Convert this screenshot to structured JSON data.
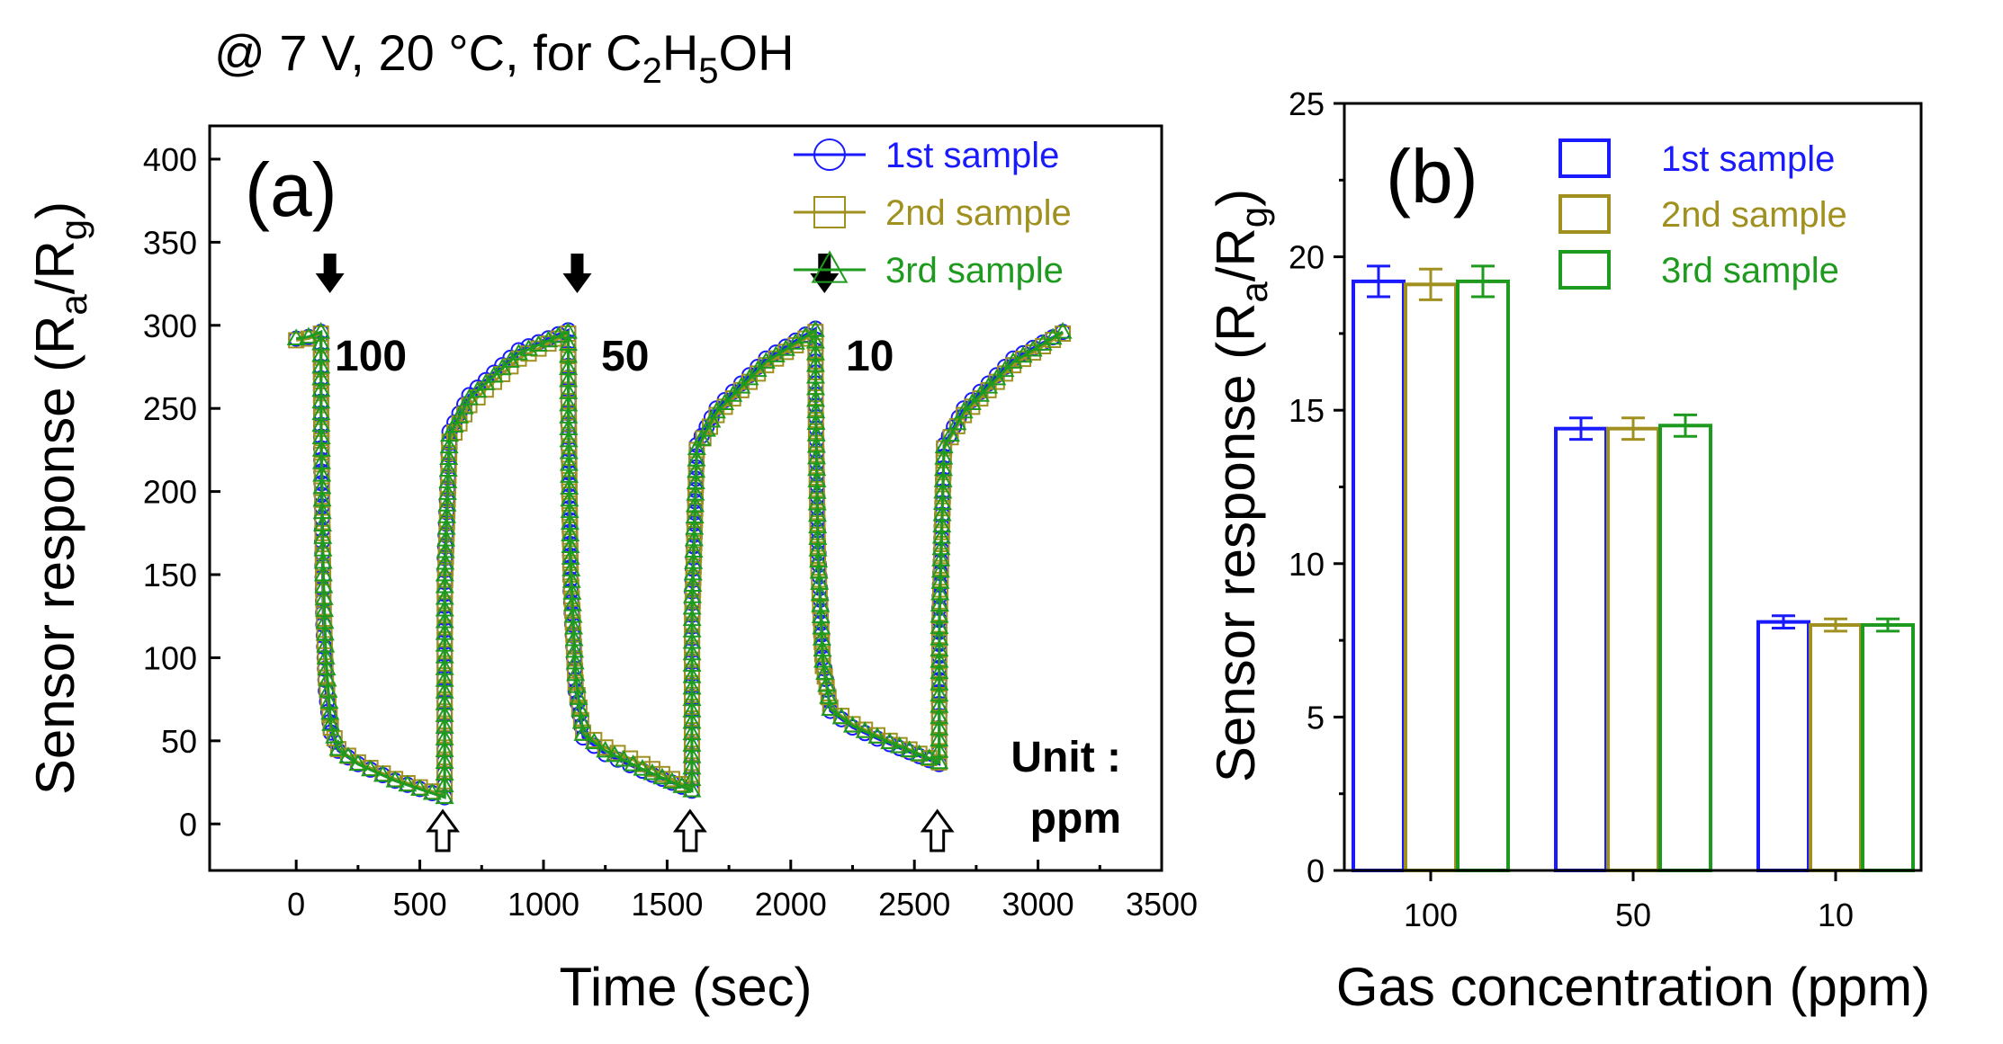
{
  "figure": {
    "title": {
      "prefix": "@ 7 V, 20 °C, for C",
      "sub1": "2",
      "mid": "H",
      "sub2": "5",
      "suffix": "OH"
    }
  },
  "colors": {
    "s1": "#1a1aff",
    "s2": "#a09020",
    "s3": "#1e9a1e"
  },
  "chart_data": [
    {
      "type": "line",
      "panel": "(a)",
      "xlabel": "Time (sec)",
      "ylabel": {
        "pre": "Sensor response (R",
        "sub1": "a",
        "mid": "/R",
        "sub2": "g",
        "post": ")"
      },
      "xlim": [
        -350,
        3500
      ],
      "ylim": [
        -28,
        420
      ],
      "xticks": [
        0,
        500,
        1000,
        1500,
        2000,
        2500,
        3000,
        3500
      ],
      "yticks": [
        0,
        50,
        100,
        150,
        200,
        250,
        300,
        350,
        400
      ],
      "legend": [
        "1st sample",
        "2nd sample",
        "3rd sample"
      ],
      "annotations": {
        "conc": [
          "100",
          "50",
          "10"
        ],
        "unit_line1": "Unit :",
        "unit_line2": "ppm"
      },
      "gas_on_times": [
        100,
        1100,
        2100
      ],
      "gas_off_times": [
        600,
        1600,
        2600
      ],
      "series": [
        {
          "name": "1st sample",
          "points": [
            [
              0,
              292
            ],
            [
              50,
              293
            ],
            [
              100,
              296
            ],
            [
              101,
              226
            ],
            [
              105,
              170
            ],
            [
              110,
              120
            ],
            [
              120,
              80
            ],
            [
              140,
              55
            ],
            [
              170,
              44
            ],
            [
              250,
              36
            ],
            [
              400,
              26
            ],
            [
              600,
              16
            ],
            [
              601,
              160
            ],
            [
              620,
              236
            ],
            [
              700,
              258
            ],
            [
              900,
              285
            ],
            [
              1100,
              297
            ],
            [
              1101,
              240
            ],
            [
              1105,
              190
            ],
            [
              1110,
              140
            ],
            [
              1130,
              80
            ],
            [
              1160,
              52
            ],
            [
              1250,
              42
            ],
            [
              1400,
              32
            ],
            [
              1600,
              20
            ],
            [
              1601,
              140
            ],
            [
              1620,
              228
            ],
            [
              1700,
              250
            ],
            [
              1900,
              280
            ],
            [
              2100,
              298
            ],
            [
              2101,
              265
            ],
            [
              2110,
              170
            ],
            [
              2130,
              100
            ],
            [
              2160,
              68
            ],
            [
              2250,
              58
            ],
            [
              2400,
              48
            ],
            [
              2600,
              36
            ],
            [
              2601,
              130
            ],
            [
              2620,
              228
            ],
            [
              2700,
              250
            ],
            [
              2900,
              280
            ],
            [
              3100,
              296
            ]
          ]
        },
        {
          "name": "2nd sample",
          "points": [
            [
              0,
              291
            ],
            [
              50,
              292
            ],
            [
              100,
              295
            ],
            [
              101,
              252
            ],
            [
              105,
              195
            ],
            [
              110,
              135
            ],
            [
              120,
              88
            ],
            [
              140,
              58
            ],
            [
              170,
              45
            ],
            [
              250,
              37
            ],
            [
              400,
              27
            ],
            [
              600,
              17
            ],
            [
              601,
              140
            ],
            [
              620,
              230
            ],
            [
              700,
              252
            ],
            [
              900,
              280
            ],
            [
              1100,
              295
            ],
            [
              1101,
              268
            ],
            [
              1105,
              200
            ],
            [
              1110,
              150
            ],
            [
              1130,
              85
            ],
            [
              1160,
              55
            ],
            [
              1250,
              46
            ],
            [
              1400,
              36
            ],
            [
              1600,
              21
            ],
            [
              1601,
              120
            ],
            [
              1620,
              225
            ],
            [
              1700,
              246
            ],
            [
              1900,
              276
            ],
            [
              2100,
              296
            ],
            [
              2101,
              250
            ],
            [
              2110,
              160
            ],
            [
              2130,
              95
            ],
            [
              2160,
              70
            ],
            [
              2250,
              60
            ],
            [
              2400,
              50
            ],
            [
              2600,
              37
            ],
            [
              2601,
              118
            ],
            [
              2620,
              226
            ],
            [
              2700,
              246
            ],
            [
              2900,
              276
            ],
            [
              3100,
              295
            ]
          ]
        },
        {
          "name": "3rd sample",
          "points": [
            [
              0,
              292
            ],
            [
              50,
              293
            ],
            [
              100,
              296
            ],
            [
              101,
              240
            ],
            [
              105,
              195
            ],
            [
              110,
              150
            ],
            [
              120,
              100
            ],
            [
              140,
              60
            ],
            [
              170,
              45
            ],
            [
              250,
              36
            ],
            [
              400,
              26
            ],
            [
              600,
              16
            ],
            [
              601,
              150
            ],
            [
              620,
              234
            ],
            [
              700,
              256
            ],
            [
              900,
              283
            ],
            [
              1100,
              296
            ],
            [
              1101,
              245
            ],
            [
              1105,
              195
            ],
            [
              1110,
              160
            ],
            [
              1130,
              90
            ],
            [
              1160,
              54
            ],
            [
              1250,
              44
            ],
            [
              1400,
              33
            ],
            [
              1600,
              20
            ],
            [
              1601,
              130
            ],
            [
              1620,
              226
            ],
            [
              1700,
              248
            ],
            [
              1900,
              278
            ],
            [
              2100,
              297
            ],
            [
              2101,
              255
            ],
            [
              2110,
              165
            ],
            [
              2130,
              98
            ],
            [
              2160,
              69
            ],
            [
              2250,
              59
            ],
            [
              2400,
              49
            ],
            [
              2600,
              37
            ],
            [
              2601,
              125
            ],
            [
              2620,
              227
            ],
            [
              2700,
              248
            ],
            [
              2900,
              278
            ],
            [
              3100,
              296
            ]
          ]
        }
      ]
    },
    {
      "type": "bar",
      "panel": "(b)",
      "xlabel": "Gas concentration (ppm)",
      "ylabel": {
        "pre": "Sensor response (R",
        "sub1": "a",
        "mid": "/R",
        "sub2": "g",
        "post": ")"
      },
      "ylim": [
        0,
        25
      ],
      "yticks": [
        0,
        5,
        10,
        15,
        20,
        25
      ],
      "categories": [
        "100",
        "50",
        "10"
      ],
      "series": [
        {
          "name": "1st sample",
          "values": [
            19.2,
            14.4,
            8.1
          ],
          "errors": [
            0.5,
            0.35,
            0.2
          ]
        },
        {
          "name": "2nd sample",
          "values": [
            19.1,
            14.4,
            8.0
          ],
          "errors": [
            0.5,
            0.35,
            0.2
          ]
        },
        {
          "name": "3rd sample",
          "values": [
            19.2,
            14.5,
            8.0
          ],
          "errors": [
            0.5,
            0.35,
            0.2
          ]
        }
      ]
    }
  ]
}
